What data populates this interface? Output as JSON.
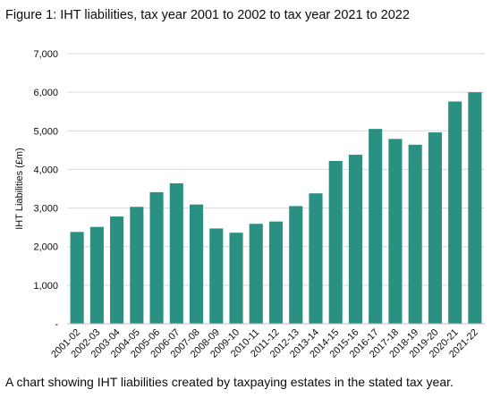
{
  "figure": {
    "title": "Figure 1: IHT liabilities, tax year 2001 to 2002 to tax year 2021 to 2022",
    "caption": "A chart showing IHT liabilities created by taxpaying estates in the stated tax year."
  },
  "colors": {
    "bar": "#2a9182",
    "grid": "#d9d9d9",
    "axis": "#bfbfbf"
  },
  "chart_data": {
    "type": "bar",
    "title": "Figure 1: IHT liabilities, tax year 2001 to 2002 to tax year 2021 to 2022",
    "xlabel": "",
    "ylabel": "IHT Liabilities (£m)",
    "ylim": [
      0,
      7000
    ],
    "yticks": [
      0,
      1000,
      2000,
      3000,
      4000,
      5000,
      6000,
      7000
    ],
    "ytick_labels": [
      "-",
      "1,000",
      "2,000",
      "3,000",
      "4,000",
      "5,000",
      "6,000",
      "7,000"
    ],
    "grid": true,
    "categories": [
      "2001-02",
      "2002-03",
      "2003-04",
      "2004-05",
      "2005-06",
      "2006-07",
      "2007-08",
      "2008-09",
      "2009-10",
      "2010-11",
      "2011-12",
      "2012-13",
      "2013-14",
      "2014-15",
      "2015-16",
      "2016-17",
      "2017-18",
      "2018-19",
      "2019-20",
      "2020-21",
      "2021-22"
    ],
    "values": [
      2380,
      2510,
      2780,
      3030,
      3410,
      3640,
      3090,
      2470,
      2360,
      2590,
      2650,
      3050,
      3380,
      4220,
      4380,
      5050,
      4790,
      4640,
      4960,
      5760,
      6000
    ]
  }
}
